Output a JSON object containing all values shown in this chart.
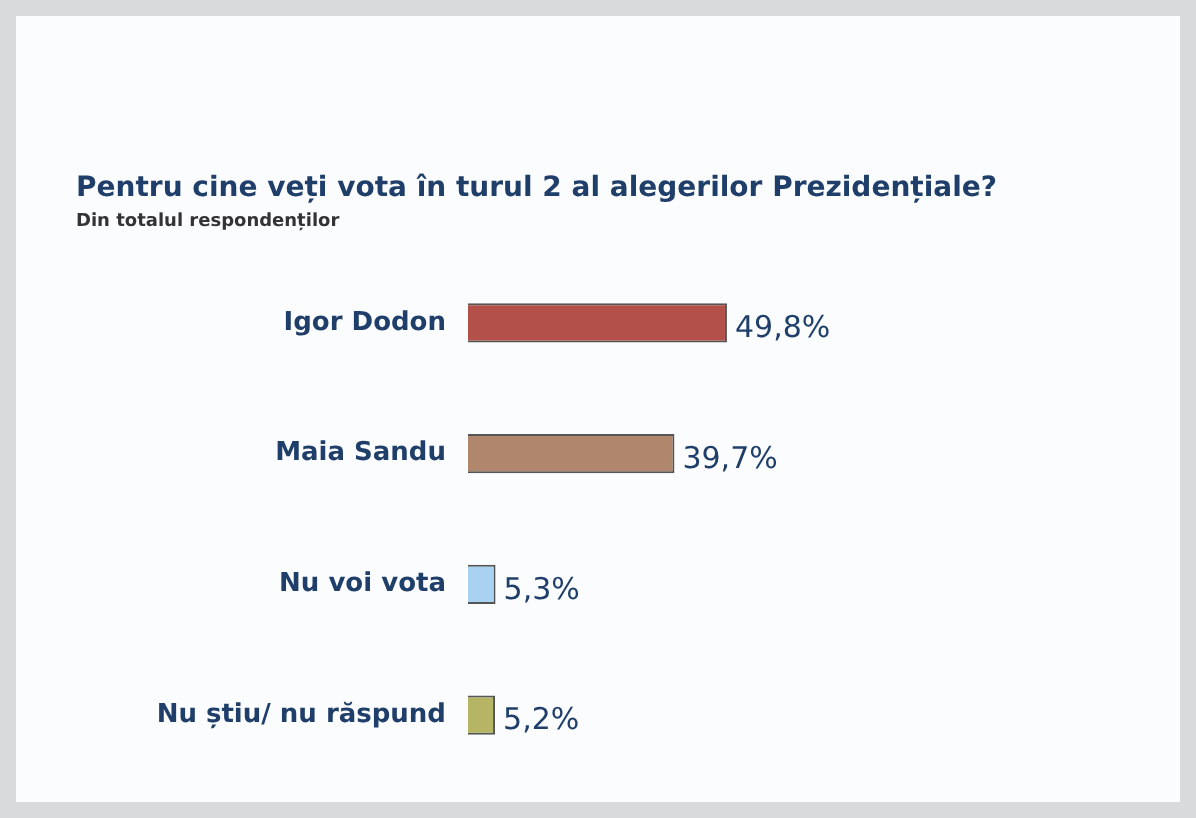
{
  "chart_data": {
    "type": "bar",
    "orientation": "horizontal",
    "title": "Pentru cine veți vota în turul 2 al alegerilor Prezidențiale?",
    "subtitle": "Din totalul respondenților",
    "categories": [
      "Igor Dodon",
      "Maia Sandu",
      "Nu voi vota",
      "Nu știu/ nu răspund"
    ],
    "values": [
      49.8,
      39.7,
      5.3,
      5.2
    ],
    "colors": [
      "#b4504a",
      "#b0866c",
      "#a8d2ef",
      "#b5b565"
    ],
    "value_labels": [
      "49,8%",
      "39,7%",
      "5,3%",
      "5,2%"
    ],
    "tick_labels": "y",
    "grid": false,
    "legend": false
  }
}
